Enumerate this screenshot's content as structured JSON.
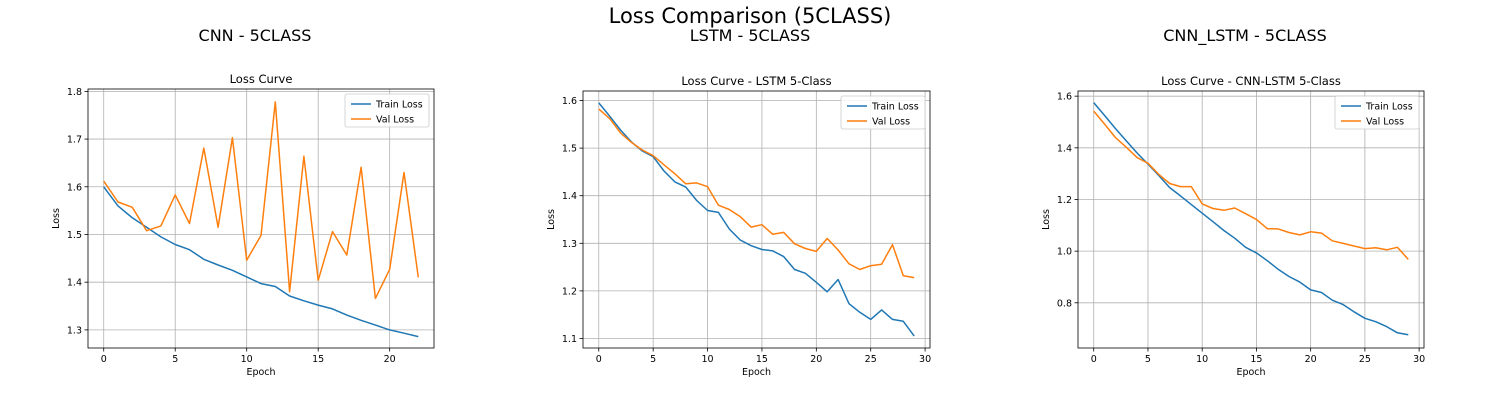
{
  "figure": {
    "title": "Loss Comparison (5CLASS)",
    "panels": [
      "CNN - 5CLASS",
      "LSTM - 5CLASS",
      "CNN_LSTM - 5CLASS"
    ]
  },
  "colors": {
    "train": "#1f77b4",
    "val": "#ff7f0e",
    "grid": "#b0b0b0"
  },
  "chart_data": [
    {
      "type": "line",
      "title": "Loss Curve",
      "xlabel": "Epoch",
      "ylabel": "Loss",
      "xlim": [
        -1.1,
        23.1
      ],
      "ylim": [
        1.262,
        1.805
      ],
      "xticks": [
        0,
        5,
        10,
        15,
        20
      ],
      "yticks": [
        1.3,
        1.4,
        1.5,
        1.6,
        1.7,
        1.8
      ],
      "grid": true,
      "legend": "top-right",
      "x": [
        0,
        1,
        2,
        3,
        4,
        5,
        6,
        7,
        8,
        9,
        10,
        11,
        12,
        13,
        14,
        15,
        16,
        17,
        18,
        19,
        20,
        21,
        22
      ],
      "series": [
        {
          "name": "Train Loss",
          "values": [
            1.6,
            1.56,
            1.535,
            1.515,
            1.495,
            1.479,
            1.468,
            1.448,
            1.436,
            1.425,
            1.411,
            1.397,
            1.391,
            1.371,
            1.361,
            1.352,
            1.344,
            1.331,
            1.32,
            1.31,
            1.3,
            1.293,
            1.286
          ]
        },
        {
          "name": "Val Loss",
          "values": [
            1.612,
            1.568,
            1.557,
            1.508,
            1.518,
            1.583,
            1.523,
            1.681,
            1.515,
            1.703,
            1.446,
            1.498,
            1.778,
            1.38,
            1.664,
            1.404,
            1.506,
            1.457,
            1.641,
            1.366,
            1.427,
            1.63,
            1.41
          ]
        }
      ]
    },
    {
      "type": "line",
      "title": "Loss Curve - LSTM 5-Class",
      "xlabel": "Epoch",
      "ylabel": "Loss",
      "xlim": [
        -1.45,
        30.45
      ],
      "ylim": [
        1.08,
        1.62
      ],
      "xticks": [
        0,
        5,
        10,
        15,
        20,
        25,
        30
      ],
      "yticks": [
        1.1,
        1.2,
        1.3,
        1.4,
        1.5,
        1.6
      ],
      "grid": true,
      "legend": "top-right",
      "x": [
        0,
        1,
        2,
        3,
        4,
        5,
        6,
        7,
        8,
        9,
        10,
        11,
        12,
        13,
        14,
        15,
        16,
        17,
        18,
        19,
        20,
        21,
        22,
        23,
        24,
        25,
        26,
        27,
        28,
        29
      ],
      "series": [
        {
          "name": "Train Loss",
          "values": [
            1.595,
            1.567,
            1.538,
            1.513,
            1.494,
            1.482,
            1.452,
            1.429,
            1.418,
            1.39,
            1.369,
            1.365,
            1.33,
            1.307,
            1.295,
            1.287,
            1.284,
            1.272,
            1.245,
            1.237,
            1.218,
            1.198,
            1.224,
            1.173,
            1.155,
            1.14,
            1.16,
            1.14,
            1.136,
            1.105
          ]
        },
        {
          "name": "Val Loss",
          "values": [
            1.582,
            1.562,
            1.532,
            1.512,
            1.496,
            1.484,
            1.465,
            1.446,
            1.425,
            1.427,
            1.419,
            1.38,
            1.371,
            1.356,
            1.334,
            1.339,
            1.319,
            1.323,
            1.299,
            1.289,
            1.283,
            1.31,
            1.286,
            1.257,
            1.245,
            1.253,
            1.256,
            1.297,
            1.232,
            1.228
          ]
        }
      ]
    },
    {
      "type": "line",
      "title": "Loss Curve - CNN-LSTM 5-Class",
      "xlabel": "Epoch",
      "ylabel": "Loss",
      "xlim": [
        -1.45,
        30.45
      ],
      "ylim": [
        0.625,
        1.62
      ],
      "xticks": [
        0,
        5,
        10,
        15,
        20,
        25,
        30
      ],
      "yticks": [
        0.8,
        1.0,
        1.2,
        1.4,
        1.6
      ],
      "grid": true,
      "legend": "top-right",
      "x": [
        0,
        1,
        2,
        3,
        4,
        5,
        6,
        7,
        8,
        9,
        10,
        11,
        12,
        13,
        14,
        15,
        16,
        17,
        18,
        19,
        20,
        21,
        22,
        23,
        24,
        25,
        26,
        27,
        28,
        29
      ],
      "series": [
        {
          "name": "Train Loss",
          "values": [
            1.575,
            1.525,
            1.475,
            1.427,
            1.38,
            1.337,
            1.293,
            1.246,
            1.214,
            1.18,
            1.147,
            1.114,
            1.08,
            1.05,
            1.015,
            0.993,
            0.963,
            0.93,
            0.902,
            0.88,
            0.85,
            0.84,
            0.81,
            0.793,
            0.765,
            0.74,
            0.727,
            0.708,
            0.684,
            0.676
          ]
        },
        {
          "name": "Val Loss",
          "values": [
            1.542,
            1.492,
            1.44,
            1.402,
            1.362,
            1.34,
            1.297,
            1.262,
            1.25,
            1.25,
            1.183,
            1.165,
            1.158,
            1.167,
            1.145,
            1.123,
            1.087,
            1.086,
            1.072,
            1.063,
            1.075,
            1.07,
            1.04,
            1.03,
            1.02,
            1.01,
            1.013,
            1.005,
            1.015,
            0.968
          ]
        }
      ]
    }
  ]
}
